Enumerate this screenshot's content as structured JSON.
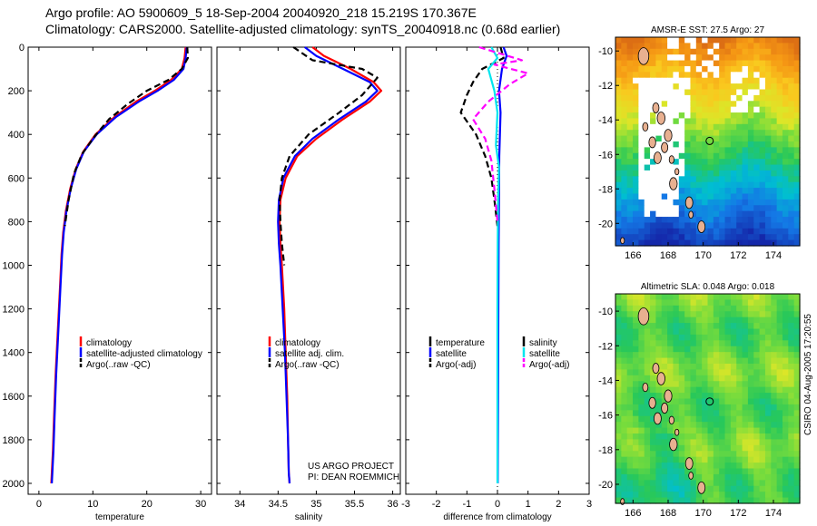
{
  "header": {
    "line1": "Argo profile: AO 5900609_5 18-Sep-2004 20040920_218 15.219S 170.367E",
    "line2": "Climatology: CARS2000. Satellite-adjusted climatology: synTS_20040918.nc (0.68d earlier)"
  },
  "side_text": "CSIRO 04-Aug-2005 17:20:55",
  "colors": {
    "red": "#ff0000",
    "blue": "#0000ff",
    "black": "#000000",
    "cyan": "#00e5ee",
    "magenta": "#ff00ff"
  },
  "chart_data": [
    {
      "type": "line",
      "id": "temperature",
      "xlabel": "temperature",
      "xlim": [
        -2,
        32
      ],
      "ylim": [
        0,
        2050
      ],
      "y_inverted": true,
      "xticks": [
        "0",
        "10",
        "20",
        "30"
      ],
      "yticks": [
        "0",
        "200",
        "400",
        "600",
        "800",
        "1000",
        "1200",
        "1400",
        "1600",
        "1800",
        "2000"
      ],
      "legend": [
        "climatology",
        "satellite-adjusted climatology",
        "Argo(..raw -QC)"
      ],
      "series": [
        {
          "name": "climatology",
          "color": "red",
          "dash": false,
          "x": [
            27.2,
            27.0,
            26.5,
            24.5,
            21.5,
            18.0,
            14.0,
            10.5,
            8.2,
            6.8,
            5.8,
            5.0,
            4.5,
            4.2,
            3.9,
            3.5,
            3.1,
            2.8,
            2.6,
            2.4,
            2.3
          ],
          "y": [
            0,
            50,
            100,
            150,
            200,
            250,
            320,
            400,
            480,
            560,
            650,
            750,
            850,
            950,
            1100,
            1300,
            1500,
            1700,
            1850,
            1950,
            2000
          ]
        },
        {
          "name": "satellite-adjusted climatology",
          "color": "blue",
          "dash": false,
          "x": [
            27.4,
            27.2,
            26.8,
            25.0,
            22.0,
            18.5,
            14.3,
            10.7,
            8.3,
            6.9,
            5.9,
            5.1,
            4.6,
            4.3,
            4.0,
            3.6,
            3.2,
            2.9,
            2.7,
            2.5,
            2.4
          ],
          "y": [
            0,
            50,
            100,
            150,
            200,
            250,
            320,
            400,
            480,
            560,
            650,
            750,
            850,
            950,
            1100,
            1300,
            1500,
            1700,
            1850,
            1950,
            2000
          ]
        },
        {
          "name": "Argo(..raw -QC)",
          "color": "black",
          "dash": true,
          "x": [
            27.5,
            27.6,
            26.5,
            24.0,
            20.0,
            16.5,
            13.0,
            10.3,
            8.0,
            6.5,
            5.5,
            4.8
          ],
          "y": [
            0,
            50,
            100,
            150,
            200,
            260,
            330,
            410,
            490,
            580,
            700,
            820
          ]
        }
      ]
    },
    {
      "type": "line",
      "id": "salinity",
      "xlabel": "salinity",
      "xlim": [
        33.7,
        36.1
      ],
      "ylim": [
        0,
        2050
      ],
      "y_inverted": true,
      "xticks": [
        "34",
        "34.5",
        "35",
        "35.5",
        "36"
      ],
      "legend": [
        "climatology",
        "satellite adj. clim.",
        "Argo(..raw -QC)"
      ],
      "annotation": [
        "US ARGO PROJECT",
        "PI: DEAN ROEMMICH"
      ],
      "series": [
        {
          "name": "climatology",
          "color": "red",
          "dash": false,
          "x": [
            34.95,
            35.1,
            35.45,
            35.75,
            35.85,
            35.7,
            35.35,
            35.0,
            34.75,
            34.6,
            34.53,
            34.52,
            34.53,
            34.55,
            34.58,
            34.6,
            34.62,
            34.63,
            34.64,
            34.65
          ],
          "y": [
            0,
            40,
            100,
            160,
            200,
            250,
            330,
            420,
            500,
            600,
            700,
            800,
            900,
            1000,
            1200,
            1400,
            1600,
            1800,
            1950,
            2000
          ]
        },
        {
          "name": "satellite adj. clim.",
          "color": "blue",
          "dash": false,
          "x": [
            34.85,
            35.0,
            35.35,
            35.7,
            35.8,
            35.65,
            35.3,
            34.95,
            34.72,
            34.57,
            34.51,
            34.5,
            34.51,
            34.53,
            34.56,
            34.59,
            34.61,
            34.63,
            34.64,
            34.65
          ],
          "y": [
            0,
            40,
            100,
            160,
            200,
            250,
            330,
            420,
            500,
            600,
            700,
            800,
            900,
            1000,
            1200,
            1400,
            1600,
            1800,
            1950,
            2000
          ]
        },
        {
          "name": "Argo(..raw -QC)",
          "color": "black",
          "dash": true,
          "x": [
            34.7,
            34.95,
            35.6,
            35.8,
            35.6,
            35.3,
            34.9,
            34.65,
            34.55,
            34.52,
            34.53,
            34.55,
            34.58
          ],
          "y": [
            0,
            60,
            100,
            140,
            220,
            300,
            400,
            500,
            600,
            700,
            800,
            900,
            1000
          ]
        }
      ]
    },
    {
      "type": "line",
      "id": "difference",
      "xlabel": "difference from climatology",
      "xlim": [
        -3,
        3
      ],
      "ylim": [
        0,
        2050
      ],
      "y_inverted": true,
      "xticks": [
        "-3",
        "-2",
        "-1",
        "0",
        "1",
        "2",
        "3"
      ],
      "legend_left": [
        "temperature",
        "satellite",
        "Argo(-adj)"
      ],
      "legend_right": [
        "salinity",
        "satellite",
        "Argo(-adj)"
      ],
      "series": [
        {
          "name": "temperature satellite",
          "color": "blue",
          "dash": false,
          "x": [
            0.2,
            0.3,
            0.15,
            0.05,
            0.1,
            0.08,
            0.06,
            0.05,
            0.04,
            0.03,
            0.02,
            0.01
          ],
          "y": [
            0,
            40,
            100,
            200,
            300,
            400,
            500,
            700,
            900,
            1200,
            1600,
            2000
          ]
        },
        {
          "name": "temperature Argo(-adj)",
          "color": "black",
          "dash": true,
          "x": [
            0.1,
            0.2,
            -0.5,
            -0.8,
            -1.0,
            -1.2,
            -0.7,
            -0.4,
            -0.2,
            -0.1,
            0.0
          ],
          "y": [
            0,
            50,
            100,
            160,
            220,
            300,
            400,
            500,
            600,
            700,
            820
          ]
        },
        {
          "name": "salinity satellite",
          "color": "cyan",
          "dash": false,
          "x": [
            -0.2,
            0.0,
            -0.3,
            -0.1,
            0.0,
            -0.05,
            0.05,
            0.02,
            0.01,
            0.0,
            0.0,
            0.0
          ],
          "y": [
            0,
            50,
            100,
            200,
            300,
            450,
            550,
            700,
            900,
            1200,
            1600,
            2000
          ]
        },
        {
          "name": "salinity Argo(-adj)",
          "color": "magenta",
          "dash": true,
          "x": [
            -0.6,
            0.8,
            -0.1,
            1.0,
            0.4,
            -0.3,
            -0.8,
            -0.4,
            -0.2,
            -0.1,
            0.0
          ],
          "y": [
            0,
            60,
            80,
            120,
            170,
            250,
            330,
            420,
            520,
            650,
            800
          ]
        }
      ]
    },
    {
      "type": "heatmap",
      "id": "sst_map",
      "title": "AMSR-E SST: 27.5 Argo: 27",
      "xlim": [
        165,
        175.5
      ],
      "ylim": [
        -21.3,
        -9.2
      ],
      "xticks": [
        "166",
        "168",
        "170",
        "172",
        "174"
      ],
      "yticks": [
        "-10",
        "-12",
        "-14",
        "-16",
        "-18",
        "-20"
      ],
      "argo_point": {
        "lon": 170.367,
        "lat": -15.219
      }
    },
    {
      "type": "heatmap",
      "id": "sla_map",
      "title": "Altimetric SLA: 0.048 Argo: 0.018",
      "xlim": [
        165,
        175.5
      ],
      "ylim": [
        -21.1,
        -9.0
      ],
      "xticks": [
        "166",
        "168",
        "170",
        "172",
        "174"
      ],
      "yticks": [
        "-10",
        "-12",
        "-14",
        "-16",
        "-18",
        "-20"
      ],
      "argo_point": {
        "lon": 170.367,
        "lat": -15.219
      }
    }
  ]
}
